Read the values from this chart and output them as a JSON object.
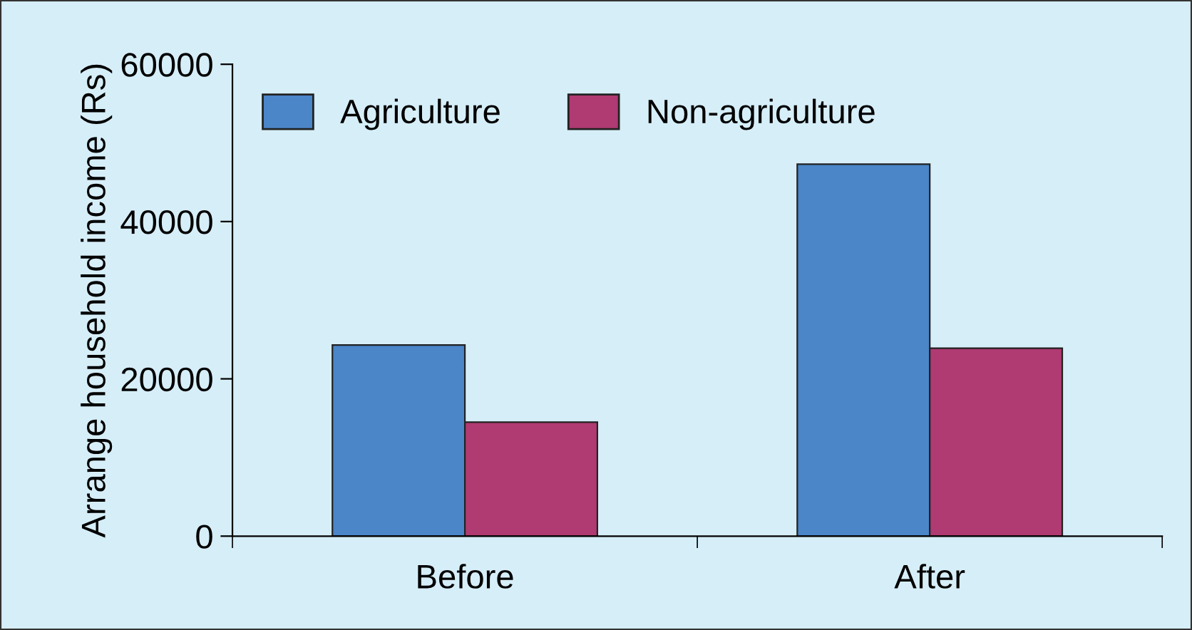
{
  "chart_data": {
    "type": "bar",
    "ylabel": "Arrange household income (Rs)",
    "categories": [
      "Before",
      "After"
    ],
    "series": [
      {
        "name": "Agriculture",
        "color": "#4a86c8",
        "values": [
          24300,
          47300
        ]
      },
      {
        "name": "Non-agriculture",
        "color": "#b03a72",
        "values": [
          14500,
          23900
        ]
      }
    ],
    "ylim": [
      0,
      60000
    ],
    "yticks": [
      0,
      20000,
      40000,
      60000
    ],
    "grid": false,
    "legend": "top left"
  }
}
